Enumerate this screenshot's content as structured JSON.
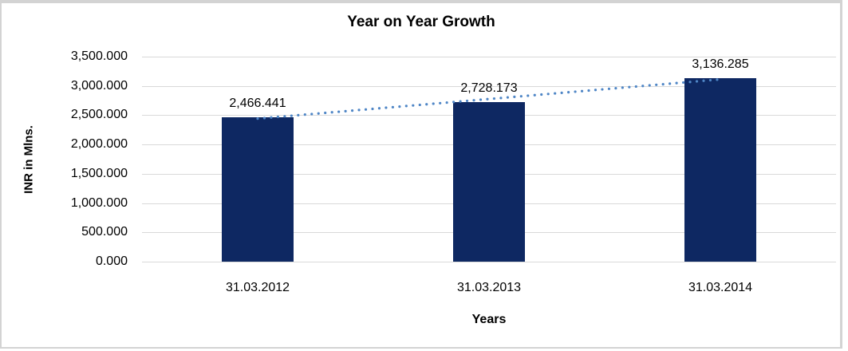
{
  "chart": {
    "title": "Year on Year Growth",
    "y_axis_title": "INR in Mlns.",
    "x_axis_title": "Years"
  },
  "chart_data": {
    "type": "bar",
    "title": "Year on Year Growth",
    "xlabel": "Years",
    "ylabel": "INR in Mlns.",
    "categories": [
      "31.03.2012",
      "31.03.2013",
      "31.03.2014"
    ],
    "values": [
      2466.441,
      2728.173,
      3136.285
    ],
    "data_labels": [
      "2,466.441",
      "2,728.173",
      "3,136.285"
    ],
    "y_ticks": [
      "3,500.000",
      "3,000.000",
      "2,500.000",
      "2,000.000",
      "1,500.000",
      "1,000.000",
      "500.000",
      "0.000"
    ],
    "y_tick_values": [
      3500,
      3000,
      2500,
      2000,
      1500,
      1000,
      500,
      0
    ],
    "ylim": [
      0,
      3500
    ],
    "grid": true,
    "legend": "none",
    "colors": {
      "bar": "#0e2862",
      "trendline": "#4f86c6",
      "gridline": "#d9d9d9",
      "frame_border": "#d3d3d3",
      "text": "#000000"
    },
    "trendline": {
      "type": "linear",
      "style": "dotted"
    }
  }
}
